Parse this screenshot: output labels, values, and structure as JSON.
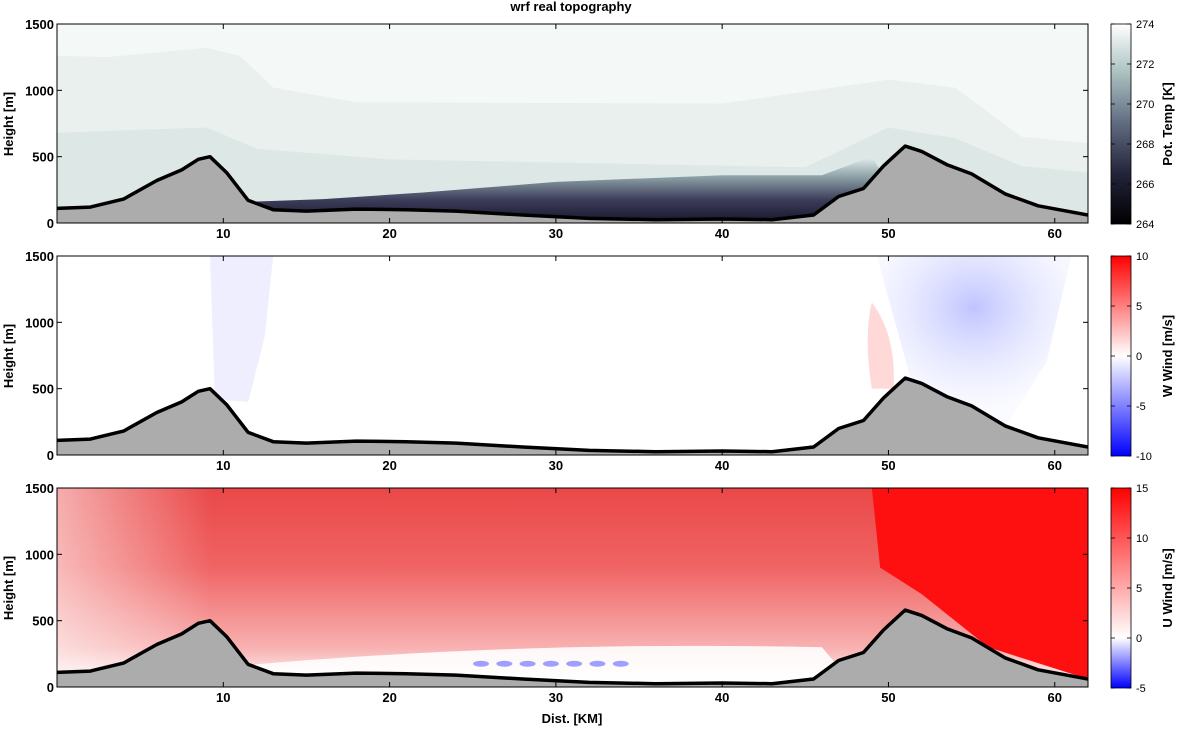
{
  "title": "wrf real topography",
  "chart_data": [
    {
      "type": "heatmap",
      "field": "potential temperature",
      "ylabel": "Height [m]",
      "xlabel": "",
      "xlim": [
        0,
        62
      ],
      "ylim": [
        0,
        1500
      ],
      "xticks": [
        10,
        20,
        30,
        40,
        50,
        60
      ],
      "yticks": [
        0,
        500,
        1000,
        1500
      ],
      "colorbar": {
        "label": "Pot. Temp [K]",
        "range": [
          264,
          274
        ],
        "ticks": [
          264,
          266,
          268,
          270,
          272,
          274
        ],
        "colormap": "bone"
      },
      "grid": false
    },
    {
      "type": "heatmap",
      "field": "vertical wind",
      "ylabel": "Height [m]",
      "xlabel": "",
      "xlim": [
        0,
        62
      ],
      "ylim": [
        0,
        1500
      ],
      "xticks": [
        10,
        20,
        30,
        40,
        50,
        60
      ],
      "yticks": [
        0,
        500,
        1000,
        1500
      ],
      "colorbar": {
        "label": "W Wind [m/s]",
        "range": [
          -10,
          10
        ],
        "ticks": [
          -10,
          -5,
          0,
          5,
          10
        ],
        "colormap": "blue-white-red"
      },
      "grid": false
    },
    {
      "type": "heatmap",
      "field": "horizontal wind",
      "ylabel": "Height [m]",
      "xlabel": "Dist. [KM]",
      "xlim": [
        0,
        62
      ],
      "ylim": [
        0,
        1500
      ],
      "xticks": [
        10,
        20,
        30,
        40,
        50,
        60
      ],
      "yticks": [
        0,
        500,
        1000,
        1500
      ],
      "colorbar": {
        "label": "U Wind [m/s]",
        "range": [
          -5,
          15
        ],
        "ticks": [
          -5,
          0,
          5,
          10,
          15
        ],
        "colormap": "blue-white-red"
      },
      "grid": false
    }
  ],
  "terrain": {
    "x": [
      0,
      2,
      4,
      6,
      7.5,
      8.5,
      9.2,
      10.2,
      11.5,
      13,
      15,
      18,
      21,
      24,
      28,
      32,
      36,
      40,
      43,
      45.5,
      47,
      48.5,
      49.7,
      51,
      52,
      53.5,
      55,
      57,
      59,
      62
    ],
    "y": [
      110,
      120,
      180,
      320,
      400,
      480,
      500,
      380,
      170,
      100,
      90,
      105,
      100,
      90,
      60,
      35,
      25,
      30,
      25,
      60,
      200,
      260,
      430,
      580,
      540,
      440,
      370,
      220,
      130,
      60
    ]
  }
}
